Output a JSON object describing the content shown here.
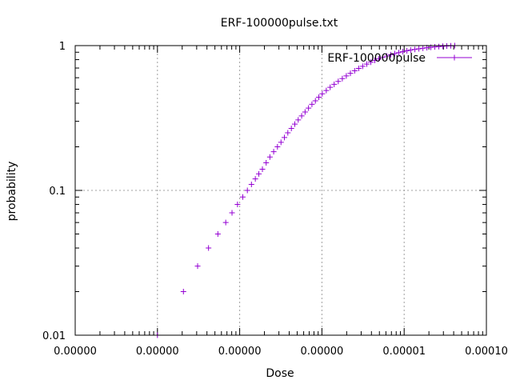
{
  "chart_data": {
    "type": "scatter",
    "title": "ERF-100000pulse.txt",
    "xlabel": "Dose",
    "ylabel": "probability",
    "xscale": "log",
    "yscale": "log",
    "xlim": [
      1e-09,
      0.0001
    ],
    "ylim": [
      0.01,
      1
    ],
    "x_tick_values": [
      1e-09,
      1e-08,
      1e-07,
      1e-06,
      1e-05,
      0.0001
    ],
    "x_tick_labels": [
      "0.00000",
      "0.00000",
      "0.00000",
      "0.00000",
      "0.00001",
      "0.00010"
    ],
    "y_tick_values": [
      0.01,
      0.1,
      1
    ],
    "y_tick_labels": [
      "0.01",
      "0.1",
      "1"
    ],
    "grid": true,
    "legend_position": "top-right",
    "colors": {
      "series": "#9400d3",
      "grid": "#a0a0a0",
      "axis": "#000000"
    },
    "marker": "plus",
    "series": [
      {
        "name": "ERF-100000pulse",
        "x": [
          1e-08,
          2.07e-08,
          3.08e-08,
          4.18e-08,
          5.43e-08,
          6.77e-08,
          8.07e-08,
          9.41e-08,
          1.09e-07,
          1.24e-07,
          1.39e-07,
          1.55e-07,
          1.71e-07,
          1.89e-07,
          2.1e-07,
          2.33e-07,
          2.59e-07,
          2.88e-07,
          3.18e-07,
          3.5e-07,
          3.85e-07,
          4.25e-07,
          4.68e-07,
          5.15e-07,
          5.67e-07,
          6.24e-07,
          6.87e-07,
          7.56e-07,
          8.33e-07,
          9.17e-07,
          1.01e-06,
          1.13e-06,
          1.26e-06,
          1.41e-06,
          1.58e-06,
          1.77e-06,
          1.98e-06,
          2.22e-06,
          2.5e-06,
          2.8e-06,
          3.13e-06,
          3.51e-06,
          3.93e-06,
          4.39e-06,
          4.92e-06,
          5.5e-06,
          6.15e-06,
          6.87e-06,
          7.69e-06,
          8.6e-06,
          9.62e-06,
          1.08e-05,
          1.2e-05,
          1.35e-05,
          1.51e-05,
          1.69e-05,
          1.89e-05,
          2.11e-05,
          2.36e-05,
          2.64e-05,
          2.95e-05,
          3.3e-05,
          3.69e-05,
          4.12e-05
        ],
        "y": [
          0.01,
          0.02,
          0.03,
          0.04,
          0.05,
          0.06,
          0.07,
          0.08,
          0.09,
          0.1,
          0.11,
          0.12,
          0.13,
          0.14,
          0.155,
          0.17,
          0.185,
          0.2,
          0.215,
          0.232,
          0.25,
          0.268,
          0.287,
          0.307,
          0.327,
          0.348,
          0.37,
          0.393,
          0.416,
          0.44,
          0.465,
          0.49,
          0.515,
          0.54,
          0.566,
          0.592,
          0.618,
          0.644,
          0.67,
          0.696,
          0.72,
          0.745,
          0.768,
          0.79,
          0.81,
          0.83,
          0.848,
          0.865,
          0.88,
          0.895,
          0.908,
          0.92,
          0.932,
          0.942,
          0.951,
          0.96,
          0.967,
          0.974,
          0.98,
          0.985,
          0.99,
          0.994,
          0.997,
          1.0
        ]
      }
    ]
  }
}
